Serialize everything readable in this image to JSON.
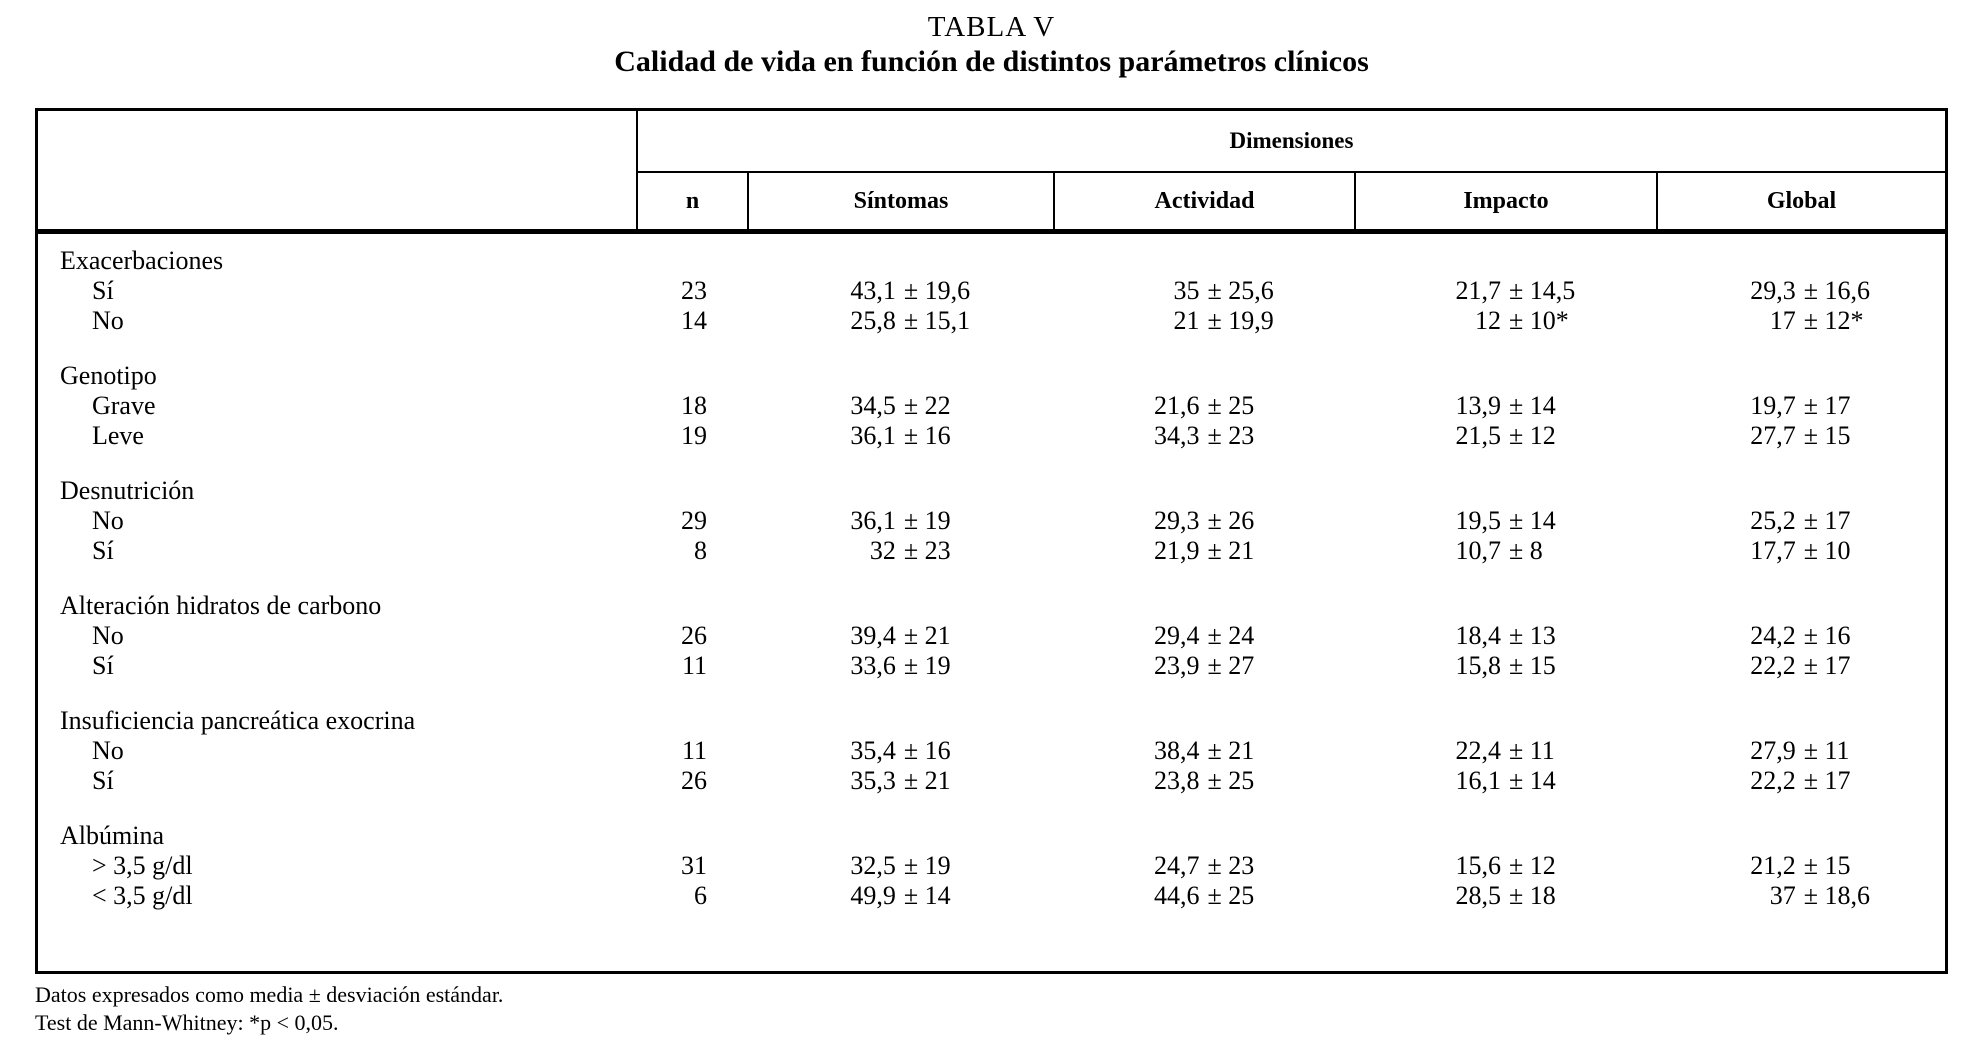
{
  "caption": {
    "number": "TABLA V",
    "title": "Calidad de vida en función de distintos parámetros clínicos"
  },
  "table": {
    "dimensions_label": "Dimensiones",
    "columns": [
      "n",
      "Síntomas",
      "Actividad",
      "Impacto",
      "Global"
    ],
    "groups": [
      {
        "label": "Exacerbaciones",
        "rows": [
          {
            "label": "Sí",
            "n": "23",
            "values": [
              "43,1 ± 19,6",
              "35 ± 25,6",
              "21,7±14,5",
              "29,3 ± 16,6"
            ]
          },
          {
            "label": "No",
            "n": "14",
            "values": [
              "25,8 ± 15,1",
              "21 ± 19,9",
              "12 ± 10*",
              "17 ± 12*"
            ]
          }
        ]
      },
      {
        "label": "Genotipo",
        "rows": [
          {
            "label": "Grave",
            "n": "18",
            "values": [
              "34,5 ± 22",
              "21,6 ± 25",
              "13,9 ± 14",
              "19,7 ± 17"
            ]
          },
          {
            "label": "Leve",
            "n": "19",
            "values": [
              "36,1 ± 16",
              "34,3 ± 23",
              "21,5 ± 12",
              "27,7 ± 15"
            ]
          }
        ]
      },
      {
        "label": "Desnutrición",
        "rows": [
          {
            "label": "No",
            "n": "29",
            "values": [
              "36,1 ± 19",
              "29,3 ± 26",
              "19,5 ± 14",
              "25,2 ± 17"
            ]
          },
          {
            "label": "Sí",
            "n": "8",
            "values": [
              "32 ± 23",
              "21,9 ± 21",
              "10,7 ± 8",
              "17,7 ± 10"
            ]
          }
        ]
      },
      {
        "label": "Alteración hidratos de carbono",
        "rows": [
          {
            "label": "No",
            "n": "26",
            "values": [
              "39,4 ± 21",
              "29,4 ± 24",
              "18,4 ± 13",
              "24,2 ± 16"
            ]
          },
          {
            "label": "Sí",
            "n": "11",
            "values": [
              "33,6 ± 19",
              "23,9 ± 27",
              "15,8 ± 15",
              "22,2 ± 17"
            ]
          }
        ]
      },
      {
        "label": "Insuficiencia pancreática exocrina",
        "rows": [
          {
            "label": "No",
            "n": "11",
            "values": [
              "35,4 ± 16",
              "38,4 ± 21",
              "22,4 ± 11",
              "27,9 ± 11"
            ]
          },
          {
            "label": "Sí",
            "n": "26",
            "values": [
              "35,3 ± 21",
              "23,8 ± 25",
              "16,1 ± 14",
              "22,2 ± 17"
            ]
          }
        ]
      },
      {
        "label": "Albúmina",
        "rows": [
          {
            "label": "> 3,5 g/dl",
            "n": "31",
            "values": [
              "32,5 ± 19",
              "24,7 ± 23",
              "15,6 ± 12",
              "21,2 ± 15"
            ]
          },
          {
            "label": "< 3,5 g/dl",
            "n": "6",
            "values": [
              "49,9 ± 14",
              "44,6 ± 25",
              "28,5 ± 18",
              "37 ± 18,6"
            ]
          }
        ]
      }
    ]
  },
  "footnotes": [
    "Datos expresados como media ± desviación estándar.",
    "Test de Mann-Whitney: *p < 0,05."
  ]
}
